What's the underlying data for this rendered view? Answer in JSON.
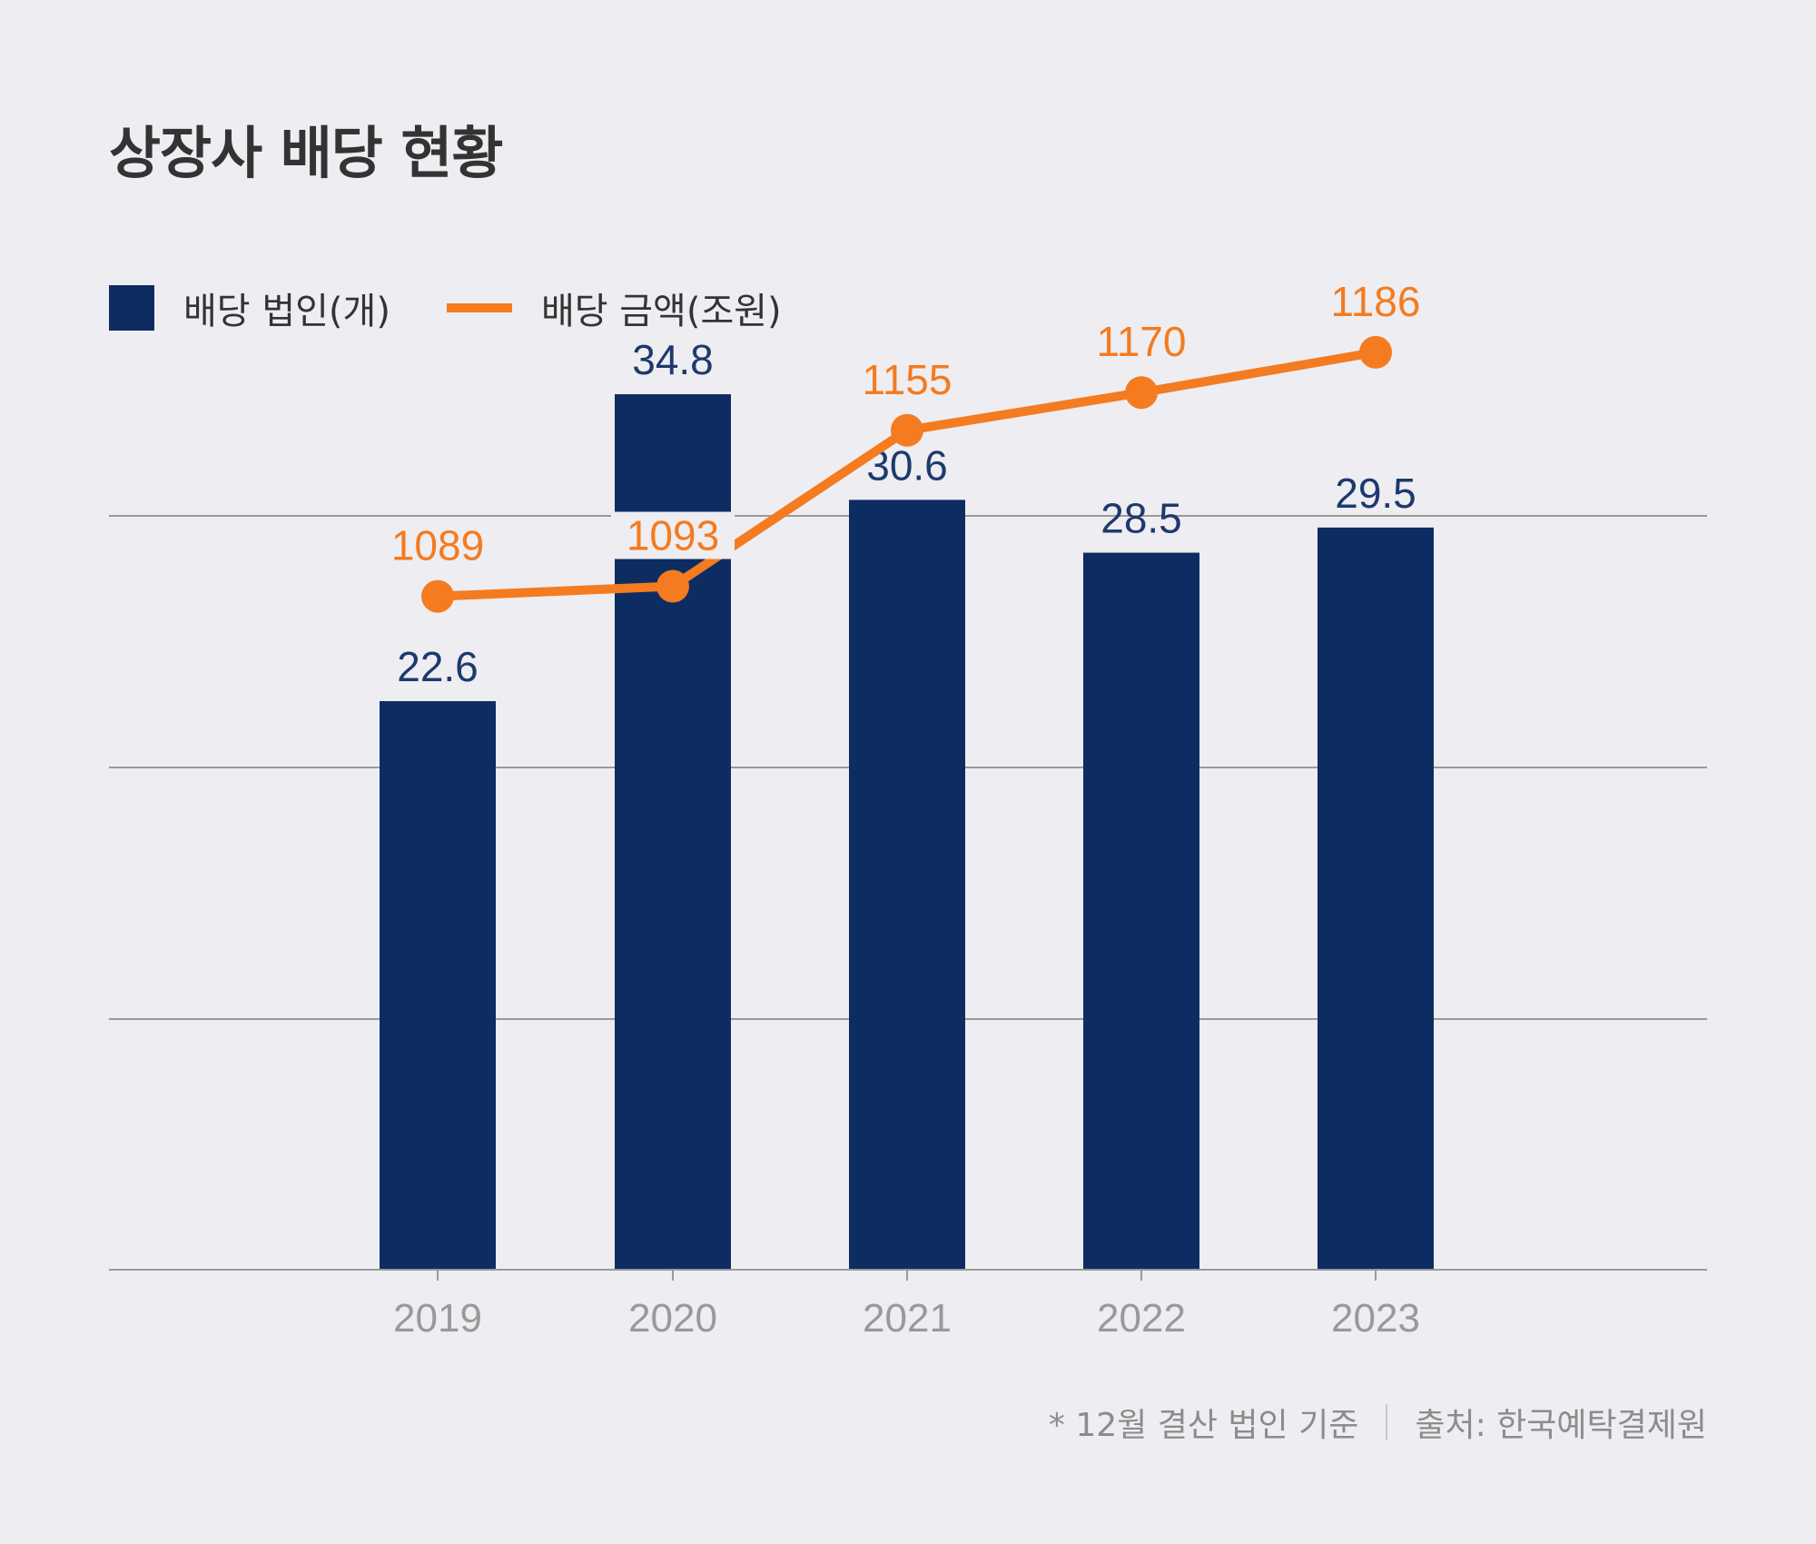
{
  "title": "상장사 배당 현황",
  "legend": {
    "bar_label": "배당 법인(개)",
    "line_label": "배당 금액(조원)"
  },
  "colors": {
    "bar": "#0D2D62",
    "line": "#F47B20",
    "bar_label": "#1D3A6E",
    "grid": "#9A9A9A",
    "tick": "#999999"
  },
  "footnote": {
    "note": "* 12월 결산 법인 기준",
    "source": "출처: 한국예탁결제원"
  },
  "chart_data": {
    "type": "bar+line",
    "categories": [
      "2019",
      "2020",
      "2021",
      "2022",
      "2023"
    ],
    "series": [
      {
        "name": "배당 법인(개)",
        "type": "bar",
        "values": [
          22.6,
          34.8,
          30.6,
          28.5,
          29.5
        ],
        "labels": [
          "22.6",
          "34.8",
          "30.6",
          "28.5",
          "29.5"
        ]
      },
      {
        "name": "배당 금액(조원)",
        "type": "line",
        "values": [
          1089,
          1093,
          1155,
          1170,
          1186
        ],
        "labels": [
          "1089",
          "1093",
          "1155",
          "1170",
          "1186"
        ]
      }
    ],
    "bar_ylim": [
      0,
      30
    ],
    "line_ylim": [
      1030,
      1170
    ],
    "grid": true
  }
}
